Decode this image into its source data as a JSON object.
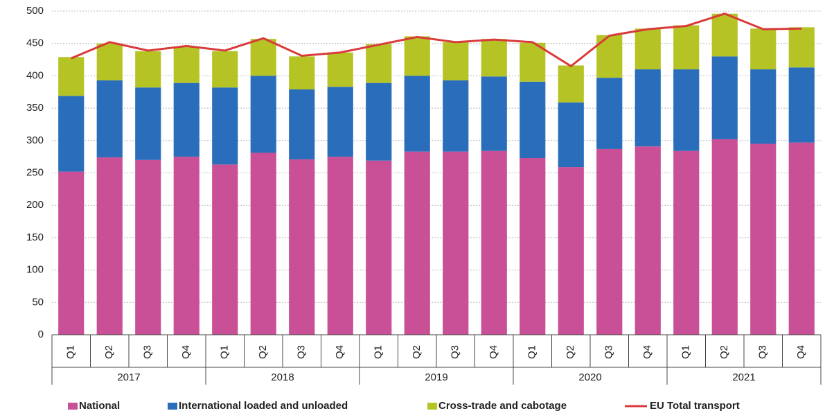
{
  "chart_data": {
    "type": "bar",
    "stacked": true,
    "categories": [
      "Q1",
      "Q2",
      "Q3",
      "Q4",
      "Q1",
      "Q2",
      "Q3",
      "Q4",
      "Q1",
      "Q2",
      "Q3",
      "Q4",
      "Q1",
      "Q2",
      "Q3",
      "Q4",
      "Q1",
      "Q2",
      "Q3",
      "Q4"
    ],
    "groups": [
      "2017",
      "2018",
      "2019",
      "2020",
      "2021"
    ],
    "series": [
      {
        "name": "National",
        "color": "#c94f96",
        "values": [
          252,
          274,
          270,
          275,
          263,
          281,
          271,
          275,
          269,
          283,
          283,
          284,
          273,
          259,
          287,
          291,
          284,
          302,
          295,
          297
        ]
      },
      {
        "name": "International loaded and unloaded",
        "color": "#2a6ebb",
        "values": [
          117,
          119,
          112,
          114,
          119,
          119,
          108,
          108,
          120,
          117,
          110,
          115,
          118,
          100,
          110,
          119,
          126,
          128,
          115,
          116
        ]
      },
      {
        "name": "Cross-trade and cabotage",
        "color": "#b5c424",
        "values": [
          60,
          57,
          56,
          56,
          56,
          57,
          51,
          53,
          60,
          61,
          59,
          58,
          60,
          57,
          66,
          63,
          68,
          66,
          63,
          62
        ]
      },
      {
        "name": "EU Total transport",
        "color": "#d93a3a",
        "type": "line",
        "values": [
          427,
          452,
          439,
          446,
          439,
          458,
          431,
          436,
          448,
          460,
          452,
          456,
          452,
          415,
          462,
          472,
          477,
          496,
          472,
          473
        ]
      }
    ],
    "ylim": [
      0,
      500
    ],
    "yticks": [
      0,
      50,
      100,
      150,
      200,
      250,
      300,
      350,
      400,
      450,
      500
    ],
    "grid": true,
    "legend": "bottom"
  }
}
